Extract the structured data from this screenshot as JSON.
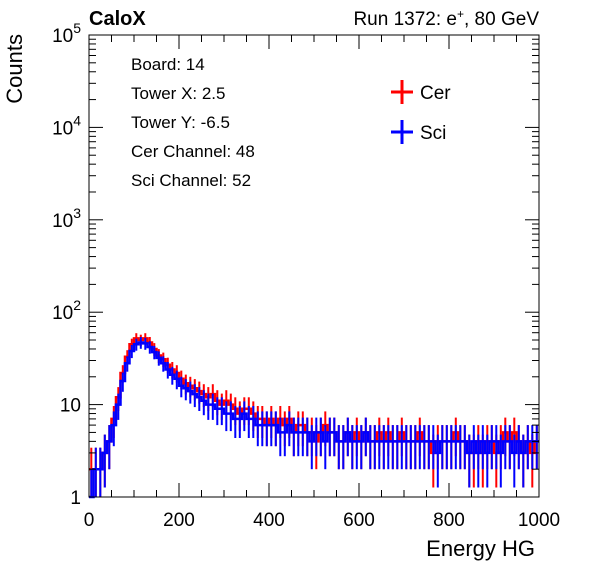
{
  "header": {
    "experiment": "CaloX",
    "run_prefix": "Run 1372: e",
    "run_sup": "+",
    "run_suffix": ", 80 GeV"
  },
  "info_lines": [
    "Board: 14",
    "Tower X: 2.5",
    "Tower Y: -6.5",
    "Cer Channel: 48",
    "Sci Channel: 52"
  ],
  "chart_data": {
    "type": "line",
    "xlabel": "Energy HG",
    "ylabel": "Counts",
    "xlim": [
      0,
      1000
    ],
    "ylim": [
      1,
      100000
    ],
    "yscale": "log",
    "grid": false,
    "legend_position": "top-right",
    "x_ticks": [
      "0",
      "200",
      "400",
      "600",
      "800",
      "1000"
    ],
    "y_ticks": [
      {
        "base": "1",
        "exp": ""
      },
      {
        "base": "10",
        "exp": ""
      },
      {
        "base": "10",
        "exp": "2"
      },
      {
        "base": "10",
        "exp": "3"
      },
      {
        "base": "10",
        "exp": "4"
      },
      {
        "base": "10",
        "exp": "5"
      }
    ],
    "bin_width": 5,
    "series": [
      {
        "name": "Cer",
        "color": "#ff0000",
        "x": [
          5,
          15,
          25,
          35,
          45,
          55,
          65,
          75,
          85,
          95,
          105,
          115,
          125,
          135,
          145,
          155,
          165,
          175,
          185,
          195,
          205,
          215,
          225,
          235,
          245,
          255,
          265,
          275,
          285,
          295,
          305,
          315,
          325,
          335,
          345,
          355,
          365,
          375,
          385,
          395,
          405,
          415,
          425,
          435,
          445,
          455,
          465,
          475,
          485,
          495,
          505,
          515,
          525,
          535,
          545,
          555,
          565,
          575,
          585,
          595,
          605,
          615,
          625,
          635,
          645,
          655,
          665,
          675,
          685,
          695,
          705,
          715,
          725,
          735,
          745,
          755,
          765,
          775,
          785,
          795,
          805,
          815,
          825,
          835,
          845,
          855,
          865,
          875,
          885,
          895,
          905,
          915,
          925,
          935,
          945,
          955,
          965,
          975,
          985,
          995
        ],
        "y": [
          2,
          2,
          2,
          3,
          4,
          7,
          12,
          22,
          33,
          45,
          52,
          50,
          52,
          47,
          40,
          34,
          31,
          27,
          24,
          22,
          19,
          17,
          16,
          15,
          14,
          13,
          12,
          13,
          11,
          10,
          11,
          10,
          9,
          8,
          9,
          9,
          8,
          7,
          7,
          6,
          7,
          6,
          7,
          6,
          7,
          5,
          6,
          6,
          5,
          5,
          4,
          5,
          6,
          5,
          5,
          4,
          4,
          5,
          4,
          5,
          4,
          5,
          4,
          4,
          5,
          4,
          5,
          4,
          4,
          5,
          4,
          4,
          4,
          5,
          4,
          4,
          3,
          4,
          4,
          4,
          4,
          5,
          4,
          4,
          3,
          3,
          4,
          3,
          4,
          4,
          3,
          4,
          5,
          4,
          5,
          4,
          3,
          4,
          3,
          4
        ]
      },
      {
        "name": "Sci",
        "color": "#0000ff",
        "x": [
          5,
          15,
          25,
          35,
          45,
          55,
          65,
          75,
          85,
          95,
          105,
          115,
          125,
          135,
          145,
          155,
          165,
          175,
          185,
          195,
          205,
          215,
          225,
          235,
          245,
          255,
          265,
          275,
          285,
          295,
          305,
          315,
          325,
          335,
          345,
          355,
          365,
          375,
          385,
          395,
          405,
          415,
          425,
          435,
          445,
          455,
          465,
          475,
          485,
          495,
          505,
          515,
          525,
          535,
          545,
          555,
          565,
          575,
          585,
          595,
          605,
          615,
          625,
          635,
          645,
          655,
          665,
          675,
          685,
          695,
          705,
          715,
          725,
          735,
          745,
          755,
          765,
          775,
          785,
          795,
          805,
          815,
          825,
          835,
          845,
          855,
          865,
          875,
          885,
          895,
          905,
          915,
          925,
          935,
          945,
          955,
          965,
          975,
          985,
          995
        ],
        "y": [
          1,
          2,
          2,
          3,
          4,
          6,
          10,
          18,
          28,
          38,
          45,
          47,
          46,
          42,
          37,
          32,
          28,
          24,
          21,
          19,
          16,
          15,
          14,
          13,
          12,
          11,
          10,
          10,
          9,
          9,
          8,
          8,
          7,
          7,
          8,
          7,
          7,
          6,
          6,
          6,
          6,
          6,
          5,
          5,
          6,
          5,
          5,
          5,
          5,
          4,
          5,
          5,
          4,
          5,
          5,
          4,
          4,
          5,
          4,
          4,
          4,
          5,
          4,
          4,
          4,
          4,
          4,
          4,
          4,
          4,
          4,
          4,
          4,
          4,
          4,
          4,
          4,
          3,
          4,
          4,
          4,
          4,
          4,
          4,
          3,
          4,
          3,
          4,
          3,
          4,
          4,
          3,
          4,
          4,
          3,
          4,
          3,
          4,
          4,
          4
        ]
      }
    ]
  }
}
